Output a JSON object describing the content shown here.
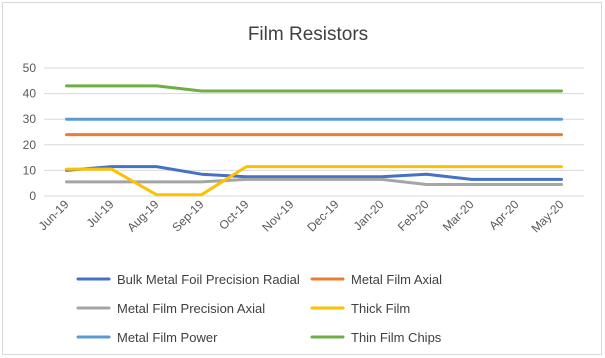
{
  "chart_data": {
    "type": "line",
    "title": "Film Resistors",
    "xlabel": "",
    "ylabel": "",
    "ylim": [
      0,
      50
    ],
    "yticks": [
      0,
      10,
      20,
      30,
      40,
      50
    ],
    "grid": true,
    "legend_position": "bottom",
    "categories": [
      "Jun-19",
      "Jul-19",
      "Aug-19",
      "Sep-19",
      "Oct-19",
      "Nov-19",
      "Dec-19",
      "Jan-20",
      "Feb-20",
      "Mar-20",
      "Apr-20",
      "May-20"
    ],
    "series": [
      {
        "name": "Bulk Metal Foil Precision Radial",
        "color": "#4472c4",
        "values": [
          10,
          11.5,
          11.5,
          8.5,
          7.5,
          7.5,
          7.5,
          7.5,
          8.5,
          6.5,
          6.5,
          6.5
        ]
      },
      {
        "name": "Metal Film Axial",
        "color": "#ed7d31",
        "values": [
          24,
          24,
          24,
          24,
          24,
          24,
          24,
          24,
          24,
          24,
          24,
          24
        ]
      },
      {
        "name": "Metal Film Precision Axial",
        "color": "#a5a5a5",
        "values": [
          5.5,
          5.5,
          5.5,
          5.5,
          6.5,
          6.5,
          6.5,
          6.5,
          4.5,
          4.5,
          4.5,
          4.5
        ]
      },
      {
        "name": "Thick Film",
        "color": "#ffc000",
        "values": [
          10.5,
          10.5,
          0.5,
          0.5,
          11.5,
          11.5,
          11.5,
          11.5,
          11.5,
          11.5,
          11.5,
          11.5
        ]
      },
      {
        "name": "Metal Film Power",
        "color": "#5b9bd5",
        "values": [
          30,
          30,
          30,
          30,
          30,
          30,
          30,
          30,
          30,
          30,
          30,
          30
        ]
      },
      {
        "name": "Thin Film Chips",
        "color": "#70ad47",
        "values": [
          43,
          43,
          43,
          41,
          41,
          41,
          41,
          41,
          41,
          41,
          41,
          41
        ]
      }
    ]
  }
}
